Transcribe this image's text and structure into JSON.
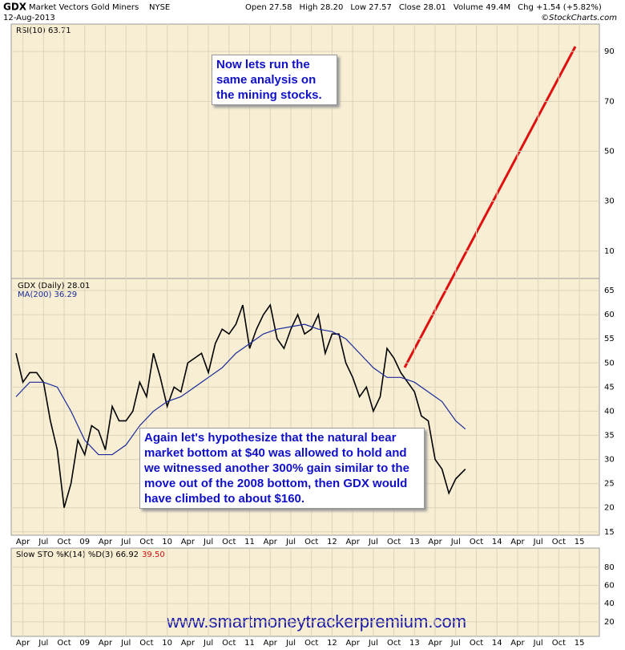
{
  "header": {
    "symbol": "GDX",
    "name": "Market Vectors Gold Miners",
    "exchange": "NYSE",
    "date": "12-Aug-2013",
    "quote": [
      "Open 27.58",
      "High 28.20",
      "Low 27.57",
      "Close 28.01",
      "Volume 49.4M",
      "Chg +1.54 (+5.82%)"
    ],
    "credit": "©StockCharts.com"
  },
  "rsi_panel": {
    "label": "RSI(10) 63.71",
    "ylim": [
      -1,
      101
    ],
    "yticks": [
      90,
      70,
      50,
      30,
      10
    ]
  },
  "stoch_panel": {
    "label": "Slow STO %K(14) %D(3) 66.92",
    "d_value": "39.50",
    "ylim": [
      4,
      101
    ],
    "yticks": [
      80,
      60,
      40,
      20
    ]
  },
  "annotations": [
    "Now lets run the same analysis on the mining stocks.",
    "Again let's hypothesize that the natural bear market bottom at $40 was allowed to hold and we witnessed another 300% gain similar to the move out of the 2008 bottom, then GDX would have climbed to about $160."
  ],
  "website": "www.smartmoneytrackerpremium.com",
  "chart_data": {
    "type": "line",
    "grid": true,
    "xlim": [
      1.3,
      86.9
    ],
    "xticks": [
      {
        "value": 3,
        "label": "Apr"
      },
      {
        "value": 6,
        "label": "Jul"
      },
      {
        "value": 9,
        "label": "Oct"
      },
      {
        "value": 12,
        "label": "09"
      },
      {
        "value": 15,
        "label": "Apr"
      },
      {
        "value": 18,
        "label": "Jul"
      },
      {
        "value": 21,
        "label": "Oct"
      },
      {
        "value": 24,
        "label": "10"
      },
      {
        "value": 27,
        "label": "Apr"
      },
      {
        "value": 30,
        "label": "Jul"
      },
      {
        "value": 33,
        "label": "Oct"
      },
      {
        "value": 36,
        "label": "11"
      },
      {
        "value": 39,
        "label": "Apr"
      },
      {
        "value": 42,
        "label": "Jul"
      },
      {
        "value": 45,
        "label": "Oct"
      },
      {
        "value": 48,
        "label": "12"
      },
      {
        "value": 51,
        "label": "Apr"
      },
      {
        "value": 54,
        "label": "Jul"
      },
      {
        "value": 57,
        "label": "Oct"
      },
      {
        "value": 60,
        "label": "13"
      },
      {
        "value": 63,
        "label": "Apr"
      },
      {
        "value": 66,
        "label": "Jul"
      },
      {
        "value": 69,
        "label": "Oct"
      },
      {
        "value": 72,
        "label": "14"
      },
      {
        "value": 75,
        "label": "Apr"
      },
      {
        "value": 78,
        "label": "Jul"
      },
      {
        "value": 81,
        "label": "Oct"
      },
      {
        "value": 84,
        "label": "15"
      }
    ],
    "ylim": [
      14.3,
      67.5
    ],
    "yticks": [
      65,
      60,
      55,
      50,
      45,
      40,
      35,
      30,
      25,
      20,
      15
    ],
    "series": [
      {
        "name": "GDX (Daily) 28.01",
        "color": "#000000",
        "x": [
          2,
          3,
          4,
          5,
          6,
          7,
          8,
          9,
          10,
          11,
          12,
          13,
          14,
          15,
          16,
          17,
          18,
          19,
          20,
          21,
          22,
          23,
          24,
          25,
          26,
          27,
          28,
          29,
          30,
          31,
          32,
          33,
          34,
          35,
          36,
          37,
          38,
          39,
          40,
          41,
          42,
          43,
          44,
          45,
          46,
          47,
          48,
          49,
          50,
          51,
          52,
          53,
          54,
          55,
          56,
          57,
          58,
          59,
          60,
          61,
          62,
          63,
          64,
          65,
          66,
          67.4
        ],
        "values": [
          52,
          46,
          48,
          48,
          46,
          38,
          32,
          20,
          25,
          34,
          31,
          37,
          36,
          32,
          41,
          38,
          38,
          40,
          46,
          43,
          52,
          47,
          41,
          45,
          44,
          50,
          51,
          52,
          48,
          54,
          57,
          56,
          58,
          62,
          53,
          57,
          60,
          62,
          55,
          53,
          57,
          60,
          56,
          57,
          60,
          52,
          56,
          56,
          50,
          47,
          43,
          45,
          40,
          43,
          53,
          51,
          48,
          46,
          44,
          39,
          38,
          30,
          28,
          23,
          26,
          28.01
        ]
      },
      {
        "name": "MA(200) 36.29",
        "color": "#1a2a9a",
        "x": [
          2,
          4,
          6,
          8,
          10,
          12,
          14,
          16,
          18,
          20,
          22,
          24,
          26,
          28,
          30,
          32,
          34,
          36,
          38,
          40,
          42,
          44,
          46,
          48,
          50,
          52,
          54,
          56,
          58,
          60,
          62,
          64,
          66,
          67.4
        ],
        "values": [
          43,
          46,
          46,
          45,
          40,
          34,
          31,
          31,
          33,
          37,
          40,
          42,
          43,
          45,
          47,
          49,
          52,
          54,
          56,
          57,
          57.5,
          58,
          57,
          56.5,
          55,
          52,
          49,
          47,
          47,
          46,
          44,
          42,
          38,
          36.29
        ]
      }
    ]
  }
}
